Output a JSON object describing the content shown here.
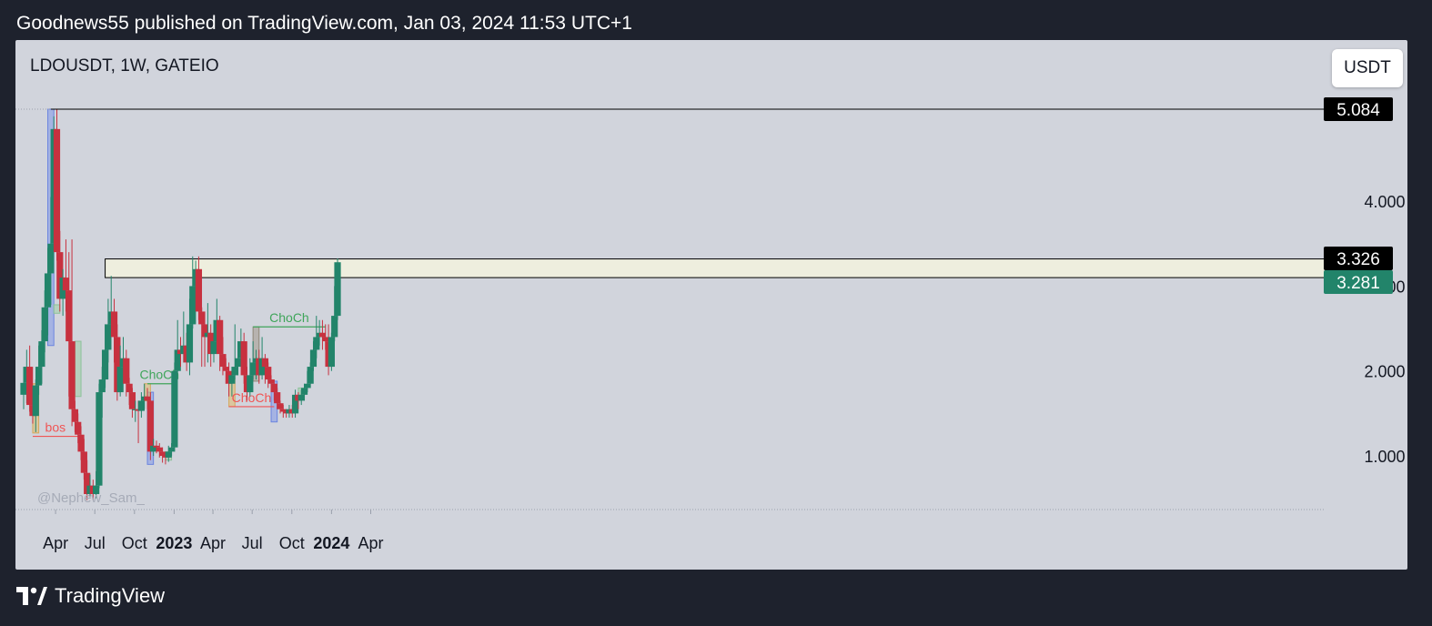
{
  "header": {
    "publisher_line": "Goodnews55 published on TradingView.com, Jan 03, 2024 11:53 UTC+1"
  },
  "chart": {
    "symbol_line": "LDOUSDT, 1W, GATEIO",
    "currency_button": "USDT",
    "watermark": "@Nephew_Sam_",
    "colors": {
      "up": "#22846a",
      "down": "#c7313f",
      "background": "#d1d4dc",
      "frame": "#1e222d"
    }
  },
  "footer": {
    "brand_label": "TradingView",
    "logo_icon": "tradingview-logo-icon"
  },
  "chart_data": {
    "type": "candlestick",
    "symbol": "LDOUSDT",
    "timeframe": "1W",
    "exchange": "GATEIO",
    "ylim": [
      0.4,
      5.5
    ],
    "y_ticks": [
      {
        "label": "1.000",
        "value": 1.0
      },
      {
        "label": "2.000",
        "value": 2.0
      },
      {
        "label": "3.000",
        "value": 3.0
      },
      {
        "label": "4.000",
        "value": 4.0
      }
    ],
    "x_ticks": [
      {
        "label": "Apr",
        "date": "2022-04-01",
        "bold": false
      },
      {
        "label": "Jul",
        "date": "2022-07-01",
        "bold": false
      },
      {
        "label": "Oct",
        "date": "2022-10-01",
        "bold": false
      },
      {
        "label": "2023",
        "date": "2023-01-01",
        "bold": true
      },
      {
        "label": "Apr",
        "date": "2023-04-01",
        "bold": false
      },
      {
        "label": "Jul",
        "date": "2023-07-01",
        "bold": false
      },
      {
        "label": "Oct",
        "date": "2023-10-01",
        "bold": false
      },
      {
        "label": "2024",
        "date": "2024-01-01",
        "bold": true
      },
      {
        "label": "Apr",
        "date": "2024-04-01",
        "bold": false
      }
    ],
    "price_labels": [
      {
        "label": "5.084",
        "value": 5.084,
        "style": "dark"
      },
      {
        "label": "3.326",
        "value": 3.326,
        "style": "dark"
      },
      {
        "label": "3.281",
        "value": 3.281,
        "style": "green"
      }
    ],
    "horizontal_lines": [
      {
        "value": 5.084,
        "color": "#000000",
        "from_date": "2022-03-21"
      }
    ],
    "zone": {
      "from_date": "2022-07-25",
      "low": 3.1,
      "high": 3.32,
      "color": "#eeeede"
    },
    "annotations": [
      {
        "text": "bos",
        "color": "#f05555",
        "level": 1.23,
        "from_date": "2022-02-07",
        "to_date": "2022-05-23"
      },
      {
        "text": "ChoCh",
        "color": "#3fa55a",
        "level": 1.85,
        "from_date": "2022-10-31",
        "to_date": "2022-12-26"
      },
      {
        "text": "ChoCh",
        "color": "#f05555",
        "level": 1.58,
        "from_date": "2023-05-08",
        "to_date": "2023-08-21"
      },
      {
        "text": "ChoCh",
        "color": "#3fa55a",
        "level": 2.52,
        "from_date": "2023-07-03",
        "to_date": "2023-12-18"
      }
    ],
    "boxes": [
      {
        "from_date": "2022-03-14",
        "to_date": "2022-03-28",
        "low": 2.3,
        "high": 5.084,
        "color": "blue"
      },
      {
        "from_date": "2022-10-31",
        "to_date": "2022-11-14",
        "low": 0.9,
        "high": 1.75,
        "color": "blue"
      },
      {
        "from_date": "2023-08-14",
        "to_date": "2023-08-28",
        "low": 1.4,
        "high": 1.88,
        "color": "blue"
      },
      {
        "from_date": "2022-02-07",
        "to_date": "2022-02-21",
        "low": 1.27,
        "high": 1.85,
        "color": "orange"
      },
      {
        "from_date": "2022-10-24",
        "to_date": "2022-11-07",
        "low": 1.65,
        "high": 1.85,
        "color": "orange"
      },
      {
        "from_date": "2023-05-08",
        "to_date": "2023-05-22",
        "low": 1.58,
        "high": 1.9,
        "color": "orange"
      },
      {
        "from_date": "2023-07-03",
        "to_date": "2023-07-17",
        "low": 1.88,
        "high": 2.52,
        "color": "gray"
      },
      {
        "from_date": "2022-03-28",
        "to_date": "2022-04-11",
        "low": 2.68,
        "high": 2.78,
        "color": "green"
      },
      {
        "from_date": "2022-04-11",
        "to_date": "2022-04-25",
        "low": 2.98,
        "high": 3.1,
        "color": "green"
      },
      {
        "from_date": "2022-05-16",
        "to_date": "2022-05-30",
        "low": 1.7,
        "high": 2.35,
        "color": "green"
      },
      {
        "from_date": "2022-12-12",
        "to_date": "2022-12-26",
        "low": 0.95,
        "high": 1.05,
        "color": "green"
      },
      {
        "from_date": "2023-10-16",
        "to_date": "2023-10-30",
        "low": 1.7,
        "high": 1.8,
        "color": "green"
      }
    ],
    "first_candle_date": "2022-01-17",
    "candles": [
      [
        1.72,
        1.86,
        2.05,
        1.55
      ],
      [
        1.86,
        2.05,
        2.25,
        1.62
      ],
      [
        2.05,
        1.6,
        2.3,
        1.52
      ],
      [
        1.6,
        1.47,
        1.8,
        1.38
      ],
      [
        1.47,
        1.83,
        1.9,
        1.28
      ],
      [
        1.83,
        2.05,
        2.3,
        1.72
      ],
      [
        2.05,
        2.35,
        2.48,
        1.85
      ],
      [
        2.35,
        2.75,
        2.95,
        2.22
      ],
      [
        2.75,
        3.15,
        3.45,
        2.42
      ],
      [
        3.15,
        3.5,
        4.05,
        2.78
      ],
      [
        3.5,
        4.85,
        5.0,
        3.42
      ],
      [
        4.85,
        3.4,
        5.084,
        3.3
      ],
      [
        3.4,
        2.85,
        3.65,
        2.7
      ],
      [
        2.85,
        3.1,
        3.2,
        2.65
      ],
      [
        3.1,
        2.95,
        3.55,
        2.7
      ],
      [
        2.95,
        2.35,
        3.4,
        1.7
      ],
      [
        2.35,
        1.55,
        3.55,
        1.35
      ],
      [
        1.55,
        1.4,
        1.65,
        1.28
      ],
      [
        1.4,
        1.25,
        1.5,
        1.15
      ],
      [
        1.25,
        1.05,
        1.35,
        0.95
      ],
      [
        1.05,
        0.8,
        1.2,
        0.72
      ],
      [
        0.8,
        0.55,
        0.95,
        0.48
      ],
      [
        0.55,
        0.65,
        0.78,
        0.5
      ],
      [
        0.65,
        0.55,
        0.72,
        0.48
      ],
      [
        0.55,
        0.65,
        0.82,
        0.5
      ],
      [
        0.65,
        1.75,
        1.85,
        0.62
      ],
      [
        1.75,
        1.9,
        2.05,
        1.45
      ],
      [
        1.9,
        2.25,
        2.55,
        1.8
      ],
      [
        2.25,
        2.55,
        2.85,
        2.1
      ],
      [
        2.55,
        2.7,
        3.12,
        2.4
      ],
      [
        2.7,
        2.4,
        2.85,
        2.1
      ],
      [
        2.4,
        1.75,
        2.55,
        1.65
      ],
      [
        1.75,
        2.05,
        2.3,
        1.7
      ],
      [
        2.05,
        2.15,
        2.4,
        1.95
      ],
      [
        2.15,
        1.85,
        2.25,
        1.7
      ],
      [
        1.85,
        1.75,
        1.92,
        1.6
      ],
      [
        1.75,
        1.55,
        1.8,
        1.45
      ],
      [
        1.55,
        1.55,
        1.65,
        1.4
      ],
      [
        1.55,
        1.53,
        1.65,
        1.15
      ],
      [
        1.53,
        1.65,
        1.75,
        1.45
      ],
      [
        1.65,
        1.7,
        1.85,
        1.55
      ],
      [
        1.7,
        1.65,
        1.8,
        1.55
      ],
      [
        1.65,
        1.05,
        1.75,
        0.95
      ],
      [
        1.05,
        1.12,
        1.2,
        1.0
      ],
      [
        1.12,
        1.1,
        1.18,
        1.03
      ],
      [
        1.1,
        1.05,
        1.15,
        0.98
      ],
      [
        1.05,
        1.0,
        1.1,
        0.92
      ],
      [
        1.0,
        0.98,
        1.05,
        0.9
      ],
      [
        0.98,
        1.05,
        1.12,
        0.93
      ],
      [
        1.05,
        1.1,
        1.15,
        1.0
      ],
      [
        1.1,
        2.0,
        2.1,
        1.05
      ],
      [
        2.0,
        2.25,
        2.6,
        1.9
      ],
      [
        2.25,
        2.2,
        2.4,
        2.05
      ],
      [
        2.2,
        2.3,
        2.7,
        2.1
      ],
      [
        2.3,
        2.1,
        2.45,
        2.0
      ],
      [
        2.1,
        2.55,
        2.85,
        1.95
      ],
      [
        2.55,
        3.0,
        3.35,
        2.5
      ],
      [
        3.0,
        3.2,
        3.3,
        2.9
      ],
      [
        3.2,
        2.7,
        3.35,
        2.6
      ],
      [
        2.7,
        2.55,
        2.75,
        2.05
      ],
      [
        2.55,
        2.4,
        2.7,
        2.05
      ],
      [
        2.4,
        2.45,
        2.8,
        2.1
      ],
      [
        2.45,
        2.2,
        2.55,
        2.05
      ],
      [
        2.2,
        2.35,
        2.6,
        2.1
      ],
      [
        2.35,
        2.6,
        2.85,
        2.25
      ],
      [
        2.6,
        2.2,
        2.65,
        2.0
      ],
      [
        2.2,
        2.05,
        2.4,
        1.95
      ],
      [
        2.05,
        2.0,
        2.15,
        1.85
      ],
      [
        2.0,
        1.85,
        2.1,
        1.7
      ],
      [
        1.85,
        1.95,
        2.05,
        1.7
      ],
      [
        1.95,
        2.05,
        2.55,
        1.9
      ],
      [
        2.05,
        2.15,
        2.35,
        1.95
      ],
      [
        2.15,
        2.35,
        2.5,
        2.05
      ],
      [
        2.35,
        1.95,
        2.45,
        1.85
      ],
      [
        1.95,
        1.75,
        2.05,
        1.65
      ],
      [
        1.75,
        1.95,
        2.15,
        1.7
      ],
      [
        1.95,
        2.1,
        2.35,
        1.9
      ],
      [
        2.1,
        2.15,
        2.25,
        1.9
      ],
      [
        2.15,
        1.95,
        2.25,
        1.85
      ],
      [
        1.95,
        2.15,
        2.4,
        1.9
      ],
      [
        2.15,
        2.05,
        2.2,
        1.85
      ],
      [
        2.05,
        1.9,
        2.1,
        1.8
      ],
      [
        1.9,
        1.85,
        1.95,
        1.75
      ],
      [
        1.85,
        1.75,
        1.9,
        1.65
      ],
      [
        1.75,
        1.62,
        1.8,
        1.55
      ],
      [
        1.62,
        1.55,
        1.65,
        1.5
      ],
      [
        1.55,
        1.52,
        1.6,
        1.45
      ],
      [
        1.52,
        1.5,
        1.55,
        1.45
      ],
      [
        1.5,
        1.55,
        1.6,
        1.45
      ],
      [
        1.55,
        1.5,
        1.6,
        1.45
      ],
      [
        1.5,
        1.72,
        1.78,
        1.45
      ],
      [
        1.72,
        1.65,
        1.75,
        1.55
      ],
      [
        1.65,
        1.72,
        1.78,
        1.6
      ],
      [
        1.72,
        1.8,
        1.85,
        1.65
      ],
      [
        1.8,
        1.85,
        2.0,
        1.75
      ],
      [
        1.85,
        2.05,
        2.1,
        1.8
      ],
      [
        2.05,
        2.25,
        2.35,
        2.0
      ],
      [
        2.25,
        2.4,
        2.65,
        2.15
      ],
      [
        2.4,
        2.45,
        2.6,
        2.3
      ],
      [
        2.45,
        2.4,
        2.6,
        2.25
      ],
      [
        2.4,
        2.35,
        2.55,
        2.25
      ],
      [
        2.35,
        2.05,
        2.55,
        1.95
      ],
      [
        2.05,
        2.4,
        2.45,
        2.0
      ],
      [
        2.4,
        2.65,
        3.0,
        2.35
      ],
      [
        2.65,
        3.281,
        3.326,
        2.6
      ]
    ]
  }
}
